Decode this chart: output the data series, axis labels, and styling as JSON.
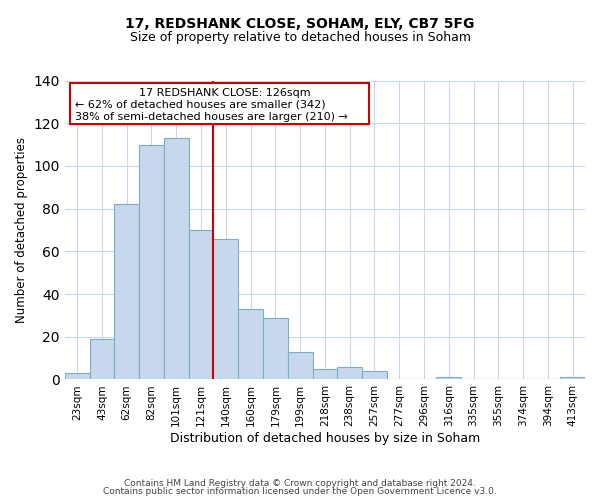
{
  "title": "17, REDSHANK CLOSE, SOHAM, ELY, CB7 5FG",
  "subtitle": "Size of property relative to detached houses in Soham",
  "xlabel": "Distribution of detached houses by size in Soham",
  "ylabel": "Number of detached properties",
  "bar_labels": [
    "23sqm",
    "43sqm",
    "62sqm",
    "82sqm",
    "101sqm",
    "121sqm",
    "140sqm",
    "160sqm",
    "179sqm",
    "199sqm",
    "218sqm",
    "238sqm",
    "257sqm",
    "277sqm",
    "296sqm",
    "316sqm",
    "335sqm",
    "355sqm",
    "374sqm",
    "394sqm",
    "413sqm"
  ],
  "bar_heights": [
    3,
    19,
    82,
    110,
    113,
    70,
    66,
    33,
    29,
    13,
    5,
    6,
    4,
    0,
    0,
    1,
    0,
    0,
    0,
    0,
    1
  ],
  "bar_color": "#c8d8ec",
  "bar_edge_color": "#7aaccc",
  "vline_color": "#cc0000",
  "annotation_line1": "17 REDSHANK CLOSE: 126sqm",
  "annotation_line2": "← 62% of detached houses are smaller (342)",
  "annotation_line3": "38% of semi-detached houses are larger (210) →",
  "annotation_box_color": "#cc0000",
  "ylim": [
    0,
    140
  ],
  "yticks": [
    0,
    20,
    40,
    60,
    80,
    100,
    120,
    140
  ],
  "footer1": "Contains HM Land Registry data © Crown copyright and database right 2024.",
  "footer2": "Contains public sector information licensed under the Open Government Licence v3.0."
}
